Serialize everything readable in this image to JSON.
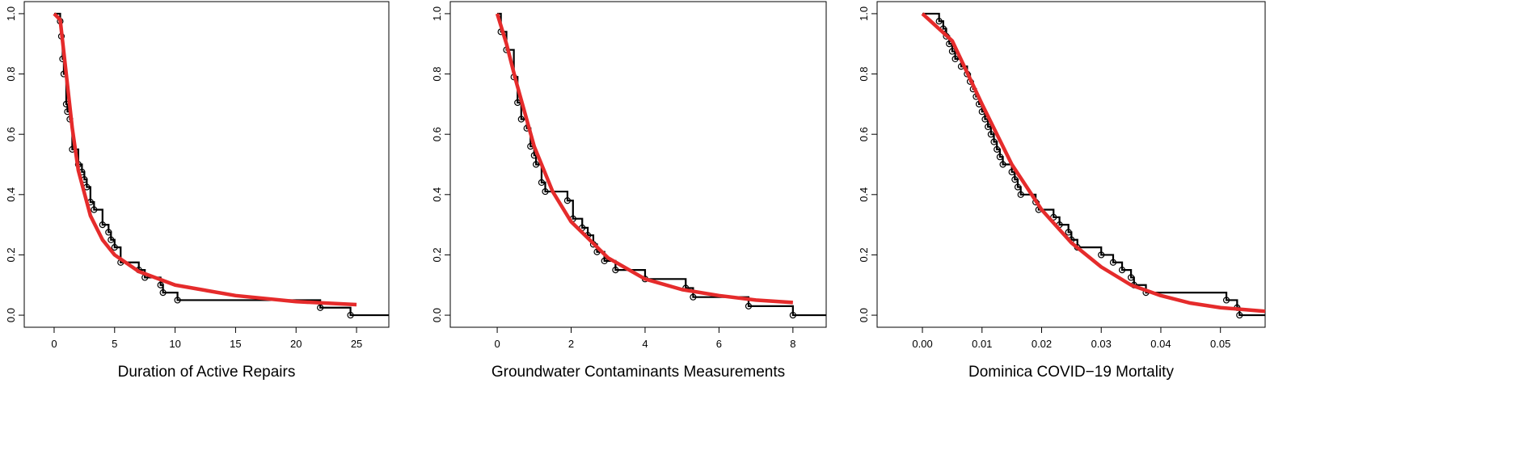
{
  "chart_data": [
    {
      "type": "step",
      "xlabel": "Duration of Active Repairs",
      "xlim": [
        -2.47,
        27.67
      ],
      "ylim": [
        -0.04,
        1.04
      ],
      "xticks": [
        0,
        5,
        10,
        15,
        20,
        25
      ],
      "yticks": [
        {
          "value": 0,
          "label": "0.0"
        },
        0.2,
        0.4,
        0.6,
        0.8,
        {
          "value": 1,
          "label": "1.0"
        }
      ],
      "series": [
        {
          "type": "step",
          "color": "#000000",
          "markers": true,
          "x": [
            0,
            0.5,
            0.6,
            0.7,
            0.8,
            1.0,
            1.1,
            1.3,
            1.5,
            2.0,
            2.3,
            2.5,
            2.7,
            3.0,
            3.3,
            4.0,
            4.5,
            4.7,
            5.0,
            5.5,
            7.0,
            7.5,
            8.8,
            9.0,
            10.2,
            22.0,
            24.5
          ],
          "values": [
            1.0,
            0.975,
            0.925,
            0.85,
            0.8,
            0.7,
            0.675,
            0.65,
            0.55,
            0.5,
            0.475,
            0.45,
            0.425,
            0.375,
            0.35,
            0.3,
            0.275,
            0.25,
            0.225,
            0.175,
            0.15,
            0.125,
            0.1,
            0.075,
            0.05,
            0.025,
            0.0
          ]
        },
        {
          "type": "line",
          "color": "#e52b2b",
          "x": [
            0,
            0.5,
            1,
            1.5,
            2,
            3,
            4,
            5,
            7,
            10,
            15,
            20,
            25
          ],
          "values": [
            1.0,
            0.98,
            0.8,
            0.62,
            0.48,
            0.33,
            0.25,
            0.2,
            0.145,
            0.1,
            0.065,
            0.045,
            0.035
          ]
        }
      ]
    },
    {
      "type": "step",
      "xlabel": "Groundwater Contaminants Measurements",
      "xlim": [
        -1.27,
        8.9
      ],
      "ylim": [
        -0.04,
        1.04
      ],
      "xticks": [
        0,
        2,
        4,
        6,
        8
      ],
      "yticks": [
        {
          "value": 0,
          "label": "0.0"
        },
        0.2,
        0.4,
        0.6,
        0.8,
        {
          "value": 1,
          "label": "1.0"
        }
      ],
      "series": [
        {
          "type": "step",
          "color": "#000000",
          "markers": true,
          "x": [
            0,
            0.1,
            0.25,
            0.45,
            0.55,
            0.65,
            0.8,
            0.9,
            1.0,
            1.05,
            1.2,
            1.3,
            1.9,
            2.05,
            2.3,
            2.45,
            2.6,
            2.7,
            2.9,
            3.2,
            4.0,
            5.1,
            5.3,
            6.8,
            8.0
          ],
          "values": [
            1.0,
            0.94,
            0.88,
            0.79,
            0.705,
            0.65,
            0.62,
            0.56,
            0.53,
            0.5,
            0.44,
            0.41,
            0.38,
            0.32,
            0.29,
            0.265,
            0.235,
            0.21,
            0.18,
            0.15,
            0.12,
            0.09,
            0.06,
            0.03,
            0.0
          ]
        },
        {
          "type": "line",
          "color": "#e52b2b",
          "x": [
            0,
            0.25,
            0.5,
            1,
            1.5,
            2,
            3,
            4,
            5,
            6,
            7,
            8
          ],
          "values": [
            1.0,
            0.9,
            0.78,
            0.56,
            0.41,
            0.31,
            0.19,
            0.12,
            0.085,
            0.065,
            0.05,
            0.042
          ]
        }
      ]
    },
    {
      "type": "step",
      "xlabel": "Dominica COVID−19 Mortality",
      "xlim": [
        -0.0076,
        0.0575
      ],
      "ylim": [
        -0.04,
        1.04
      ],
      "xticks": [
        {
          "value": 0,
          "label": "0.00"
        },
        0.01,
        0.02,
        0.03,
        0.04,
        0.05
      ],
      "yticks": [
        {
          "value": 0,
          "label": "0.0"
        },
        0.2,
        0.4,
        0.6,
        0.8,
        {
          "value": 1,
          "label": "1.0"
        }
      ],
      "series": [
        {
          "type": "step",
          "color": "#000000",
          "markers": true,
          "x": [
            0,
            0.0028,
            0.0035,
            0.004,
            0.0045,
            0.005,
            0.0055,
            0.0065,
            0.0075,
            0.008,
            0.0085,
            0.009,
            0.0095,
            0.01,
            0.0105,
            0.011,
            0.0115,
            0.012,
            0.0125,
            0.013,
            0.0135,
            0.015,
            0.0155,
            0.016,
            0.0165,
            0.019,
            0.0195,
            0.022,
            0.023,
            0.0245,
            0.025,
            0.026,
            0.03,
            0.032,
            0.0335,
            0.035,
            0.0355,
            0.0375,
            0.051,
            0.0528,
            0.0532
          ],
          "values": [
            1.0,
            0.975,
            0.95,
            0.925,
            0.9,
            0.875,
            0.85,
            0.825,
            0.8,
            0.775,
            0.75,
            0.725,
            0.7,
            0.675,
            0.65,
            0.625,
            0.6,
            0.575,
            0.55,
            0.525,
            0.5,
            0.475,
            0.45,
            0.425,
            0.4,
            0.375,
            0.35,
            0.325,
            0.3,
            0.275,
            0.25,
            0.225,
            0.2,
            0.175,
            0.15,
            0.125,
            0.1,
            0.075,
            0.05,
            0.025,
            0.0
          ]
        },
        {
          "type": "line",
          "color": "#e52b2b",
          "x": [
            0,
            0.005,
            0.01,
            0.015,
            0.02,
            0.025,
            0.03,
            0.035,
            0.04,
            0.045,
            0.05,
            0.0575
          ],
          "values": [
            1.0,
            0.91,
            0.7,
            0.5,
            0.35,
            0.24,
            0.16,
            0.1,
            0.065,
            0.04,
            0.025,
            0.013
          ]
        }
      ]
    }
  ]
}
